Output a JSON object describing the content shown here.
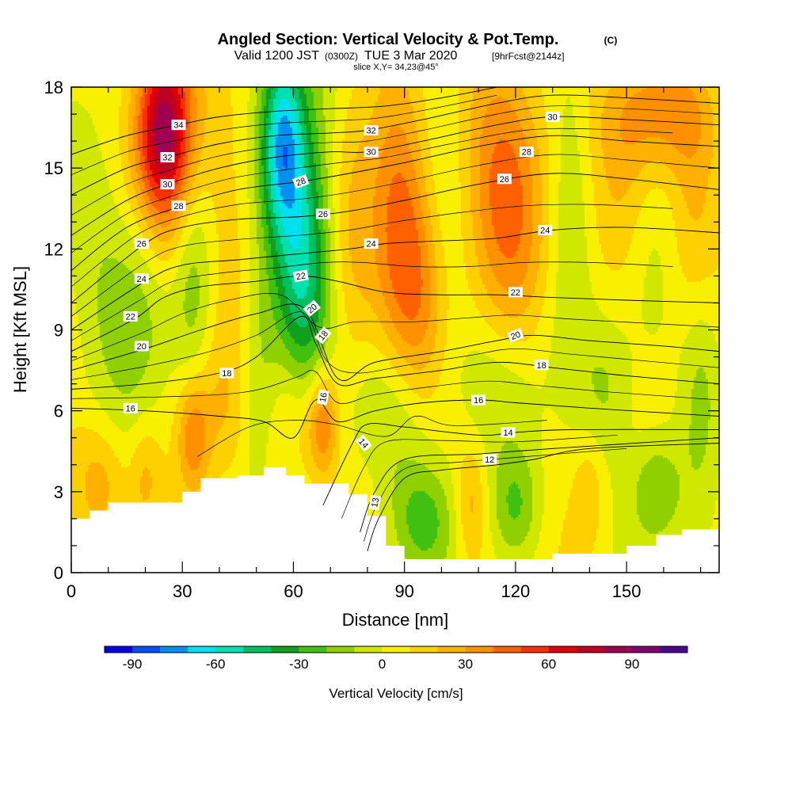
{
  "chart_data": {
    "type": "heatmap",
    "title": {
      "main": "Angled Section: Vertical Velocity & Pot.Temp.",
      "copyright": "(C)",
      "valid_prefix": "Valid 1200 JST",
      "valid_utc": "(0300Z)",
      "valid_date": "TUE 3 Mar 2020",
      "forecast": "[9hrFcst@2144z]",
      "slice": "slice X,Y= 34,23@45°"
    },
    "xlabel": "Distance [nm]",
    "ylabel": "Height [Kft MSL]",
    "xlim": [
      0,
      175
    ],
    "ylim": [
      0,
      18
    ],
    "x_ticks": [
      "0",
      "30",
      "60",
      "90",
      "120",
      "150"
    ],
    "x_tick_values": [
      0,
      30,
      60,
      90,
      120,
      150
    ],
    "y_ticks": [
      "0",
      "3",
      "6",
      "9",
      "12",
      "15",
      "18"
    ],
    "y_tick_values": [
      0,
      3,
      6,
      9,
      12,
      15,
      18
    ],
    "colorbar": {
      "title": "Vertical Velocity [cm/s]",
      "ticks": [
        "-90",
        "-60",
        "-30",
        "0",
        "30",
        "60",
        "90"
      ],
      "tick_values": [
        -90,
        -60,
        -30,
        0,
        30,
        60,
        90
      ],
      "range": [
        -100,
        110
      ],
      "colors": [
        "#0000f0",
        "#0050f0",
        "#0090f0",
        "#00e0f0",
        "#00e0b0",
        "#00c060",
        "#10a020",
        "#40c010",
        "#90d000",
        "#d0e800",
        "#f8f000",
        "#ffd000",
        "#ffb000",
        "#ff9000",
        "#ff6000",
        "#f83000",
        "#e00000",
        "#c00020",
        "#a00050",
        "#800070",
        "#500090"
      ]
    },
    "terrain_profile": [
      [
        0,
        2.0
      ],
      [
        5,
        2.3
      ],
      [
        10,
        2.6
      ],
      [
        25,
        2.6
      ],
      [
        30,
        3.0
      ],
      [
        35,
        3.5
      ],
      [
        45,
        3.6
      ],
      [
        52,
        3.9
      ],
      [
        58,
        3.6
      ],
      [
        63,
        3.3
      ],
      [
        70,
        3.3
      ],
      [
        75,
        2.9
      ],
      [
        80,
        2.1
      ],
      [
        85,
        1.0
      ],
      [
        90,
        0.5
      ],
      [
        115,
        0.5
      ],
      [
        130,
        0.7
      ],
      [
        150,
        1.0
      ],
      [
        158,
        1.4
      ],
      [
        165,
        1.6
      ],
      [
        175,
        1.6
      ]
    ],
    "vertical_velocity_features": [
      {
        "x": 25,
        "y": 16.5,
        "sx": 5,
        "sy": 2.2,
        "value": 65
      },
      {
        "x": 26,
        "y": 14.0,
        "sx": 7,
        "sy": 4.0,
        "value": 30
      },
      {
        "x": 20,
        "y": 10.2,
        "sx": 7,
        "sy": 3.0,
        "value": -30
      },
      {
        "x": 33,
        "y": 11.0,
        "sx": 4,
        "sy": 3.0,
        "value": -25
      },
      {
        "x": 8,
        "y": 14.0,
        "sx": 6,
        "sy": 4.0,
        "value": -10
      },
      {
        "x": 57,
        "y": 16.0,
        "sx": 4,
        "sy": 2.5,
        "value": -60
      },
      {
        "x": 63,
        "y": 11.5,
        "sx": 5,
        "sy": 4.0,
        "value": -45
      },
      {
        "x": 60,
        "y": 13.5,
        "sx": 8,
        "sy": 6.0,
        "value": -15
      },
      {
        "x": 44,
        "y": 13.0,
        "sx": 6,
        "sy": 6.0,
        "value": 10
      },
      {
        "x": 50,
        "y": 7.0,
        "sx": 4,
        "sy": 3.0,
        "value": -20
      },
      {
        "x": 40,
        "y": 6.0,
        "sx": 6,
        "sy": 2.0,
        "value": 12
      },
      {
        "x": 68,
        "y": 5.5,
        "sx": 3,
        "sy": 1.5,
        "value": 40
      },
      {
        "x": 61,
        "y": 6.0,
        "sx": 5,
        "sy": 2.0,
        "value": 25
      },
      {
        "x": 33,
        "y": 5.0,
        "sx": 3,
        "sy": 1.5,
        "value": 30
      },
      {
        "x": 8,
        "y": 3.5,
        "sx": 5,
        "sy": 1.5,
        "value": 18
      },
      {
        "x": 20,
        "y": 3.5,
        "sx": 3,
        "sy": 1.5,
        "value": 18
      },
      {
        "x": 88,
        "y": 12.5,
        "sx": 6,
        "sy": 4.0,
        "value": 38
      },
      {
        "x": 76,
        "y": 13.0,
        "sx": 4,
        "sy": 4.0,
        "value": 15
      },
      {
        "x": 100,
        "y": 12.0,
        "sx": 5,
        "sy": 4.0,
        "value": -10
      },
      {
        "x": 95,
        "y": 10.0,
        "sx": 5,
        "sy": 3.0,
        "value": 20
      },
      {
        "x": 86,
        "y": 6.0,
        "sx": 8,
        "sy": 2.0,
        "value": -20
      },
      {
        "x": 95,
        "y": 2.0,
        "sx": 7,
        "sy": 1.5,
        "value": -25
      },
      {
        "x": 108,
        "y": 2.5,
        "sx": 3,
        "sy": 1.5,
        "value": 20
      },
      {
        "x": 120,
        "y": 2.5,
        "sx": 5,
        "sy": 1.5,
        "value": -25
      },
      {
        "x": 115,
        "y": 7.0,
        "sx": 10,
        "sy": 2.0,
        "value": -15
      },
      {
        "x": 118,
        "y": 13.5,
        "sx": 7,
        "sy": 4.0,
        "value": 35
      },
      {
        "x": 108,
        "y": 15.0,
        "sx": 6,
        "sy": 3.0,
        "value": 10
      },
      {
        "x": 135,
        "y": 14.0,
        "sx": 4,
        "sy": 4.0,
        "value": -15
      },
      {
        "x": 150,
        "y": 15.0,
        "sx": 6,
        "sy": 3.0,
        "value": 20
      },
      {
        "x": 155,
        "y": 10.0,
        "sx": 6,
        "sy": 3.0,
        "value": -10
      },
      {
        "x": 168,
        "y": 13.0,
        "sx": 5,
        "sy": 4.0,
        "value": 15
      },
      {
        "x": 170,
        "y": 7.0,
        "sx": 4,
        "sy": 3.0,
        "value": -20
      },
      {
        "x": 145,
        "y": 7.0,
        "sx": 5,
        "sy": 2.0,
        "value": -15
      },
      {
        "x": 158,
        "y": 3.0,
        "sx": 5,
        "sy": 1.5,
        "value": -25
      },
      {
        "x": 140,
        "y": 3.0,
        "sx": 3,
        "sy": 1.5,
        "value": 15
      },
      {
        "x": 160,
        "y": 17.0,
        "sx": 10,
        "sy": 1.5,
        "value": 25
      }
    ],
    "potential_temperature_contours": [
      {
        "label": "12",
        "points": [
          [
            80,
            0.8
          ],
          [
            83,
            2.0
          ],
          [
            90,
            3.5
          ],
          [
            100,
            3.8
          ],
          [
            115,
            4.0
          ],
          [
            125,
            4.2
          ],
          [
            140,
            4.6
          ],
          [
            175,
            4.8
          ]
        ]
      },
      {
        "label": "13",
        "points": [
          [
            78,
            1.5
          ],
          [
            82,
            3.0
          ],
          [
            90,
            4.2
          ],
          [
            110,
            4.4
          ],
          [
            130,
            4.6
          ],
          [
            175,
            5.0
          ]
        ]
      },
      {
        "label": "14",
        "points": [
          [
            68,
            2.5
          ],
          [
            76,
            4.8
          ],
          [
            80,
            5.5
          ],
          [
            90,
            5.4
          ],
          [
            110,
            5.1
          ],
          [
            120,
            5.2
          ],
          [
            135,
            5.3
          ],
          [
            175,
            5.3
          ]
        ]
      },
      {
        "label": "16",
        "points": [
          [
            0,
            6.1
          ],
          [
            20,
            6.0
          ],
          [
            40,
            5.8
          ],
          [
            52,
            5.6
          ],
          [
            60,
            5.0
          ],
          [
            66,
            6.4
          ],
          [
            72,
            5.6
          ],
          [
            82,
            6.0
          ],
          [
            95,
            6.3
          ],
          [
            110,
            6.4
          ],
          [
            120,
            6.3
          ],
          [
            140,
            6.1
          ],
          [
            175,
            5.8
          ]
        ]
      },
      {
        "label": "18",
        "points": [
          [
            0,
            6.8
          ],
          [
            20,
            7.0
          ],
          [
            40,
            7.4
          ],
          [
            50,
            8.0
          ],
          [
            62,
            9.5
          ],
          [
            66,
            8.5
          ],
          [
            72,
            7.0
          ],
          [
            82,
            7.2
          ],
          [
            100,
            7.5
          ],
          [
            115,
            7.8
          ],
          [
            130,
            7.6
          ],
          [
            150,
            7.3
          ],
          [
            175,
            7.0
          ]
        ]
      },
      {
        "label": "20",
        "points": [
          [
            0,
            7.5
          ],
          [
            20,
            8.3
          ],
          [
            35,
            9.0
          ],
          [
            50,
            9.6
          ],
          [
            63,
            9.8
          ],
          [
            72,
            7.2
          ],
          [
            82,
            7.8
          ],
          [
            100,
            8.2
          ],
          [
            115,
            8.6
          ],
          [
            125,
            8.8
          ],
          [
            140,
            8.6
          ],
          [
            160,
            8.4
          ],
          [
            175,
            8.2
          ]
        ]
      },
      {
        "label": "22",
        "points": [
          [
            0,
            8.2
          ],
          [
            17,
            9.4
          ],
          [
            25,
            10.2
          ],
          [
            35,
            10.6
          ],
          [
            50,
            10.8
          ],
          [
            62,
            11.0
          ],
          [
            72,
            10.8
          ],
          [
            85,
            10.4
          ],
          [
            100,
            10.3
          ],
          [
            115,
            10.3
          ],
          [
            130,
            10.2
          ],
          [
            150,
            10.1
          ],
          [
            175,
            10.0
          ]
        ]
      },
      {
        "label": "24",
        "points": [
          [
            0,
            9.0
          ],
          [
            20,
            10.8
          ],
          [
            30,
            11.4
          ],
          [
            45,
            11.6
          ],
          [
            60,
            11.8
          ],
          [
            75,
            12.0
          ],
          [
            85,
            12.2
          ],
          [
            100,
            12.3
          ],
          [
            115,
            12.4
          ],
          [
            130,
            12.7
          ],
          [
            150,
            12.8
          ],
          [
            175,
            12.6
          ]
        ]
      },
      {
        "label": "26",
        "points": [
          [
            0,
            10.0
          ],
          [
            20,
            12.2
          ],
          [
            30,
            12.8
          ],
          [
            45,
            13.1
          ],
          [
            62,
            13.2
          ],
          [
            75,
            13.4
          ],
          [
            90,
            13.8
          ],
          [
            110,
            14.4
          ],
          [
            130,
            14.8
          ],
          [
            150,
            14.6
          ],
          [
            175,
            14.2
          ]
        ]
      },
      {
        "label": "28",
        "points": [
          [
            0,
            11.2
          ],
          [
            15,
            12.8
          ],
          [
            30,
            13.6
          ],
          [
            45,
            14.2
          ],
          [
            62,
            14.5
          ],
          [
            75,
            14.8
          ],
          [
            90,
            15.2
          ],
          [
            110,
            15.8
          ],
          [
            130,
            16.2
          ],
          [
            150,
            16.0
          ],
          [
            175,
            15.8
          ]
        ]
      },
      {
        "label": "30",
        "points": [
          [
            0,
            12.5
          ],
          [
            15,
            13.8
          ],
          [
            26,
            14.4
          ],
          [
            40,
            15.0
          ],
          [
            55,
            15.4
          ],
          [
            70,
            15.6
          ],
          [
            80,
            15.6
          ],
          [
            95,
            16.0
          ],
          [
            115,
            16.6
          ],
          [
            130,
            16.9
          ],
          [
            150,
            16.8
          ],
          [
            175,
            16.6
          ]
        ]
      },
      {
        "label": "32",
        "points": [
          [
            0,
            14.0
          ],
          [
            15,
            15.0
          ],
          [
            26,
            15.4
          ],
          [
            40,
            15.9
          ],
          [
            55,
            16.2
          ],
          [
            70,
            16.3
          ],
          [
            80,
            16.4
          ],
          [
            95,
            16.8
          ],
          [
            115,
            17.4
          ],
          [
            130,
            17.7
          ],
          [
            150,
            17.6
          ],
          [
            175,
            17.4
          ]
        ]
      },
      {
        "label": "34",
        "points": [
          [
            0,
            15.5
          ],
          [
            15,
            16.2
          ],
          [
            29,
            16.6
          ],
          [
            40,
            16.9
          ],
          [
            55,
            17.1
          ],
          [
            70,
            17.2
          ],
          [
            85,
            17.3
          ],
          [
            100,
            17.6
          ],
          [
            115,
            18.0
          ]
        ]
      }
    ],
    "contour_labels": [
      {
        "text": "34",
        "x": 29,
        "y": 16.6,
        "angle": 0
      },
      {
        "text": "32",
        "x": 26,
        "y": 15.4,
        "angle": 0
      },
      {
        "text": "30",
        "x": 26,
        "y": 14.4,
        "angle": 0
      },
      {
        "text": "28",
        "x": 29,
        "y": 13.6,
        "angle": 0
      },
      {
        "text": "26",
        "x": 19,
        "y": 12.2,
        "angle": 0
      },
      {
        "text": "24",
        "x": 19,
        "y": 10.9,
        "angle": 0
      },
      {
        "text": "22",
        "x": 16,
        "y": 9.5,
        "angle": 0
      },
      {
        "text": "20",
        "x": 19,
        "y": 8.4,
        "angle": 0
      },
      {
        "text": "18",
        "x": 42,
        "y": 7.4,
        "angle": 0
      },
      {
        "text": "16",
        "x": 16,
        "y": 6.1,
        "angle": 0
      },
      {
        "text": "28",
        "x": 62,
        "y": 14.5,
        "angle": 20
      },
      {
        "text": "26",
        "x": 68,
        "y": 13.3,
        "angle": 0
      },
      {
        "text": "22",
        "x": 62,
        "y": 11.0,
        "angle": 10
      },
      {
        "text": "20",
        "x": 65,
        "y": 9.8,
        "angle": 40
      },
      {
        "text": "18",
        "x": 68,
        "y": 8.8,
        "angle": 50
      },
      {
        "text": "16",
        "x": 68,
        "y": 6.5,
        "angle": 80
      },
      {
        "text": "14",
        "x": 79,
        "y": 4.8,
        "angle": -50
      },
      {
        "text": "13",
        "x": 82,
        "y": 2.6,
        "angle": 80
      },
      {
        "text": "32",
        "x": 81,
        "y": 16.4,
        "angle": 0
      },
      {
        "text": "30",
        "x": 81,
        "y": 15.6,
        "angle": 0
      },
      {
        "text": "24",
        "x": 81,
        "y": 12.2,
        "angle": 0
      },
      {
        "text": "30",
        "x": 130,
        "y": 16.9,
        "angle": 0
      },
      {
        "text": "28",
        "x": 123,
        "y": 15.6,
        "angle": 0
      },
      {
        "text": "26",
        "x": 117,
        "y": 14.6,
        "angle": 0
      },
      {
        "text": "24",
        "x": 128,
        "y": 12.7,
        "angle": 0
      },
      {
        "text": "22",
        "x": 120,
        "y": 10.4,
        "angle": 0
      },
      {
        "text": "20",
        "x": 120,
        "y": 8.8,
        "angle": 20
      },
      {
        "text": "18",
        "x": 127,
        "y": 7.7,
        "angle": 0
      },
      {
        "text": "16",
        "x": 110,
        "y": 6.4,
        "angle": 0
      },
      {
        "text": "14",
        "x": 118,
        "y": 5.2,
        "angle": 0
      },
      {
        "text": "12",
        "x": 113,
        "y": 4.2,
        "angle": 0
      }
    ],
    "grid": false,
    "legend": "bottom colorbar"
  }
}
